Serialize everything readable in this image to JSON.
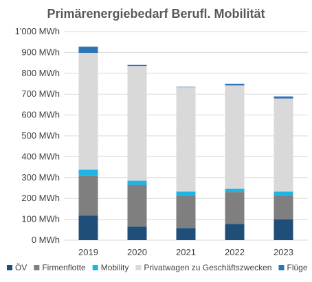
{
  "chart_data": {
    "type": "bar",
    "stacked": true,
    "title": "Primärenergiebedarf Berufl. Mobilität",
    "categories": [
      "2019",
      "2020",
      "2021",
      "2022",
      "2023"
    ],
    "ylim": [
      0,
      1000
    ],
    "ytick_values": [
      0,
      100,
      200,
      300,
      400,
      500,
      600,
      700,
      800,
      900,
      1000
    ],
    "ytick_labels": [
      "0 MWh",
      "100 MWh",
      "200 MWh",
      "300 MWh",
      "400 MWh",
      "500 MWh",
      "600 MWh",
      "700 MWh",
      "800 MWh",
      "900 MWh",
      "1'000 MWh"
    ],
    "grid": true,
    "legend_position": "bottom",
    "series": [
      {
        "name": "ÖV",
        "color": "#1f4e79",
        "values": [
          118,
          65,
          58,
          78,
          100
        ]
      },
      {
        "name": "Firmenflotte",
        "color": "#7f7f7f",
        "values": [
          192,
          200,
          157,
          152,
          115
        ]
      },
      {
        "name": "Mobility",
        "color": "#1fb4e6",
        "values": [
          28,
          20,
          18,
          17,
          18
        ]
      },
      {
        "name": "Privatwagen zu Geschäftszwecken",
        "color": "#d9d9d9",
        "values": [
          560,
          550,
          500,
          495,
          446
        ]
      },
      {
        "name": "Flüge",
        "color": "#2e75b6",
        "values": [
          30,
          5,
          2,
          8,
          10
        ]
      }
    ]
  }
}
